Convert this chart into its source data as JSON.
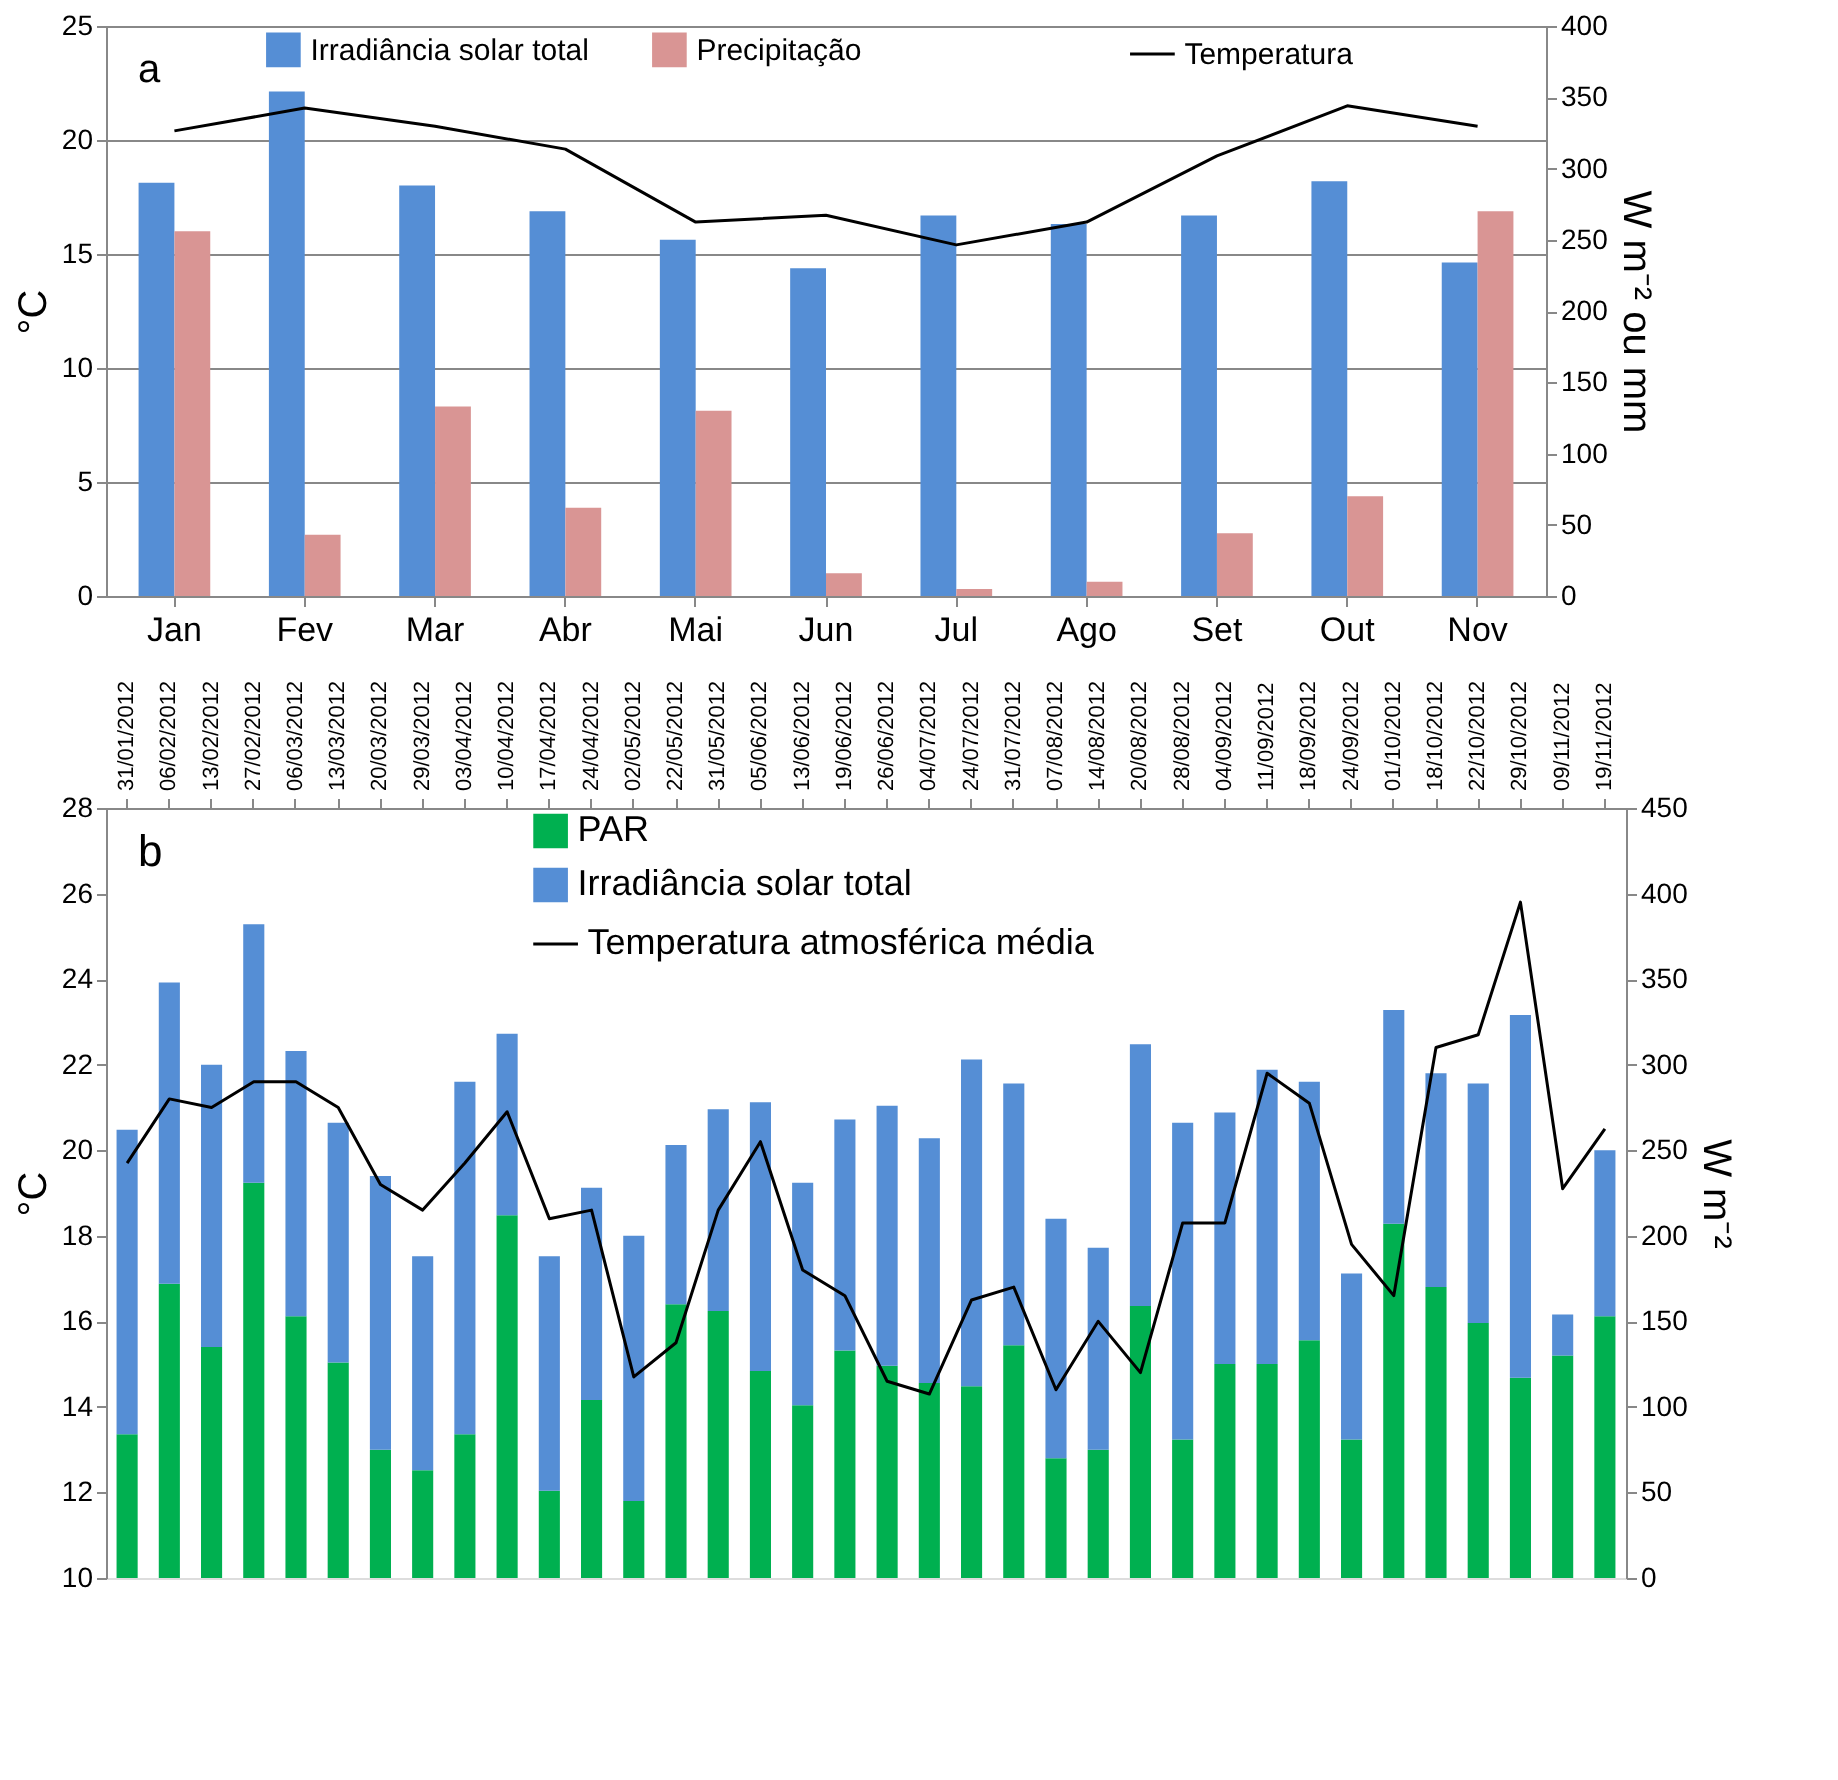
{
  "chart_data": [
    {
      "type": "bar",
      "categories": [
        "Jan",
        "Fev",
        "Mar",
        "Abr",
        "Mai",
        "Jun",
        "Jul",
        "Ago",
        "Set",
        "Out",
        "Nov"
      ],
      "series": [
        {
          "name": "Irradiância solar total",
          "color": "#558ed5",
          "axis": "y2",
          "values": [
            290,
            354,
            288,
            270,
            250,
            230,
            267,
            261,
            267,
            291,
            234
          ]
        },
        {
          "name": "Precipitação",
          "color": "#d99594",
          "axis": "y2",
          "values": [
            256,
            43,
            133,
            62,
            130,
            16,
            5,
            10,
            44,
            70,
            270
          ]
        },
        {
          "name": "Temperatura",
          "color": "#000000",
          "type": "line",
          "axis": "y",
          "values": [
            20.4,
            21.4,
            20.6,
            19.6,
            16.4,
            16.7,
            15.4,
            16.4,
            19.3,
            21.5,
            20.6
          ]
        }
      ],
      "ylabel": "°C",
      "y2label": "W m⁻² ou mm",
      "ylim": [
        0,
        25
      ],
      "yticks": [
        0,
        5,
        10,
        15,
        20,
        25
      ],
      "y2lim": [
        0,
        400
      ],
      "y2ticks": [
        0,
        50,
        100,
        150,
        200,
        250,
        300,
        350,
        400
      ],
      "grid": "y",
      "legend": "top",
      "annotations": [
        "a"
      ]
    },
    {
      "type": "bar",
      "categories": [
        "31/01/2012",
        "06/02/2012",
        "13/02/2012",
        "27/02/2012",
        "06/03/2012",
        "13/03/2012",
        "20/03/2012",
        "29/03/2012",
        "03/04/2012",
        "10/04/2012",
        "17/04/2012",
        "24/04/2012",
        "02/05/2012",
        "22/05/2012",
        "31/05/2012",
        "05/06/2012",
        "13/06/2012",
        "19/06/2012",
        "26/06/2012",
        "04/07/2012",
        "24/07/2012",
        "31/07/2012",
        "07/08/2012",
        "14/08/2012",
        "20/08/2012",
        "28/08/2012",
        "04/09/2012",
        "11/09/2012",
        "18/09/2012",
        "24/09/2012",
        "01/10/2012",
        "18/10/2012",
        "22/10/2012",
        "29/10/2012",
        "09/11/2012",
        "19/11/2012"
      ],
      "series": [
        {
          "name": "PAR",
          "color": "#00b050",
          "axis": "y2",
          "values": [
            84,
            172,
            135,
            231,
            153,
            126,
            75,
            63,
            84,
            212,
            51,
            104,
            45,
            160,
            156,
            121,
            101,
            133,
            124,
            114,
            112,
            136,
            70,
            75,
            159,
            81,
            125,
            125,
            139,
            81,
            207,
            170,
            149,
            117,
            130,
            153
          ]
        },
        {
          "name": "Irradiância solar total",
          "color": "#558ed5",
          "axis": "y2",
          "values": [
            178,
            176,
            165,
            151,
            155,
            140,
            160,
            125,
            206,
            106,
            137,
            124,
            155,
            93,
            118,
            157,
            130,
            135,
            152,
            143,
            191,
            153,
            140,
            118,
            153,
            185,
            147,
            172,
            151,
            97,
            125,
            125,
            140,
            212,
            24,
            97
          ]
        },
        {
          "name": "Temperatura  atmosférica média",
          "color": "#000000",
          "type": "line",
          "axis": "y",
          "values": [
            19.7,
            21.2,
            21.0,
            21.6,
            21.6,
            21.0,
            19.2,
            18.6,
            19.7,
            20.9,
            18.4,
            18.6,
            14.7,
            15.5,
            18.6,
            20.2,
            17.2,
            16.6,
            14.6,
            14.3,
            16.5,
            16.8,
            14.4,
            16.0,
            14.8,
            18.3,
            18.3,
            21.8,
            21.1,
            17.8,
            16.6,
            22.4,
            22.7,
            25.8,
            19.1,
            20.5
          ]
        }
      ],
      "ylabel": "°C",
      "y2label": "W m⁻²",
      "ylim": [
        10,
        28
      ],
      "yticks": [
        10,
        12,
        14,
        16,
        18,
        20,
        22,
        24,
        26,
        28
      ],
      "y2lim": [
        0,
        450
      ],
      "y2ticks": [
        0,
        50,
        100,
        150,
        200,
        250,
        300,
        350,
        400,
        450
      ],
      "stacked": true,
      "legend": "top",
      "annotations": [
        "b"
      ]
    }
  ]
}
